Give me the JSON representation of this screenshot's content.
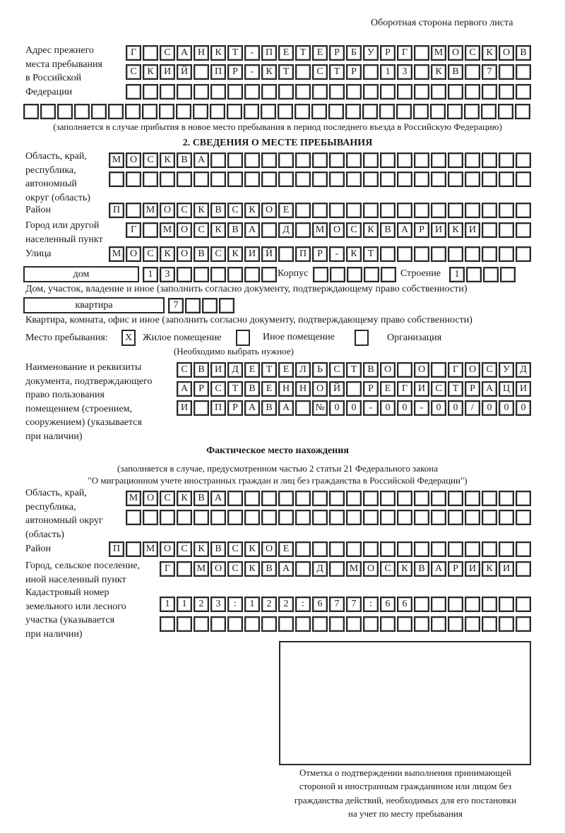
{
  "header": {
    "sheet_side": "Оборотная сторона первого листа"
  },
  "prev_address": {
    "label": [
      "Адрес прежнего",
      "места пребывания",
      "в Российской",
      "Федерации"
    ],
    "rows": [
      [
        "Г",
        "",
        "С",
        "А",
        "Н",
        "К",
        "Т",
        "-",
        "П",
        "Е",
        "Т",
        "Е",
        "Р",
        "Б",
        "У",
        "Р",
        "Г",
        "",
        "М",
        "О",
        "С",
        "К",
        "О",
        "В"
      ],
      [
        "С",
        "К",
        "И",
        "Й",
        "",
        "П",
        "Р",
        "-",
        "К",
        "Т",
        "",
        "С",
        "Т",
        "Р",
        "",
        "1",
        "3",
        "",
        "К",
        "В",
        "",
        "7",
        "",
        ""
      ],
      [],
      []
    ],
    "note": "(заполняется в случае прибытия в новое место пребывания в период последнего въезда в Российскую Федерацию)"
  },
  "stay": {
    "heading": "2. СВЕДЕНИЯ О МЕСТЕ ПРЕБЫВАНИЯ",
    "region_label": [
      "Область, край,",
      "республика,",
      "автономный",
      "округ (область)"
    ],
    "region_rows": [
      [
        "М",
        "О",
        "С",
        "К",
        "В",
        "А"
      ],
      []
    ],
    "district_label": "Район",
    "district": [
      "П",
      "",
      "М",
      "О",
      "С",
      "К",
      "В",
      "С",
      "К",
      "О",
      "Е"
    ],
    "city_label": [
      "Город или другой",
      "населенный пункт"
    ],
    "city": [
      "Г",
      "",
      "М",
      "О",
      "С",
      "К",
      "В",
      "А",
      "",
      "Д",
      "",
      "М",
      "О",
      "С",
      "К",
      "В",
      "А",
      "Р",
      "И",
      "К",
      "И"
    ],
    "street_label": "Улица",
    "street": [
      "М",
      "О",
      "С",
      "К",
      "О",
      "В",
      "С",
      "К",
      "И",
      "Й",
      "",
      "П",
      "Р",
      "-",
      "К",
      "Т"
    ],
    "house_type": "дом",
    "house": [
      "1",
      "3"
    ],
    "building_label": "Корпус",
    "building": [],
    "structure_label": "Строение",
    "structure": [
      "1"
    ],
    "house_note": "Дом, участок, владение и иное (заполнить согласно документу, подтверждающему право собственности)",
    "apartment_type": "квартира",
    "apartment": [
      "7"
    ],
    "apartment_note": "Квартира, комната, офис и иное (заполнить согласно документу, подтверждающему право собственности)",
    "place_label": "Место пребывания:",
    "place_options": [
      {
        "label": "Жилое помещение",
        "mark": "X"
      },
      {
        "label": "Иное помещение",
        "mark": ""
      },
      {
        "label": "Организация",
        "mark": ""
      }
    ],
    "place_hint": "(Необходимо выбрать нужное)",
    "doc_label": [
      "Наименование и реквизиты",
      "документа, подтверждающего",
      "право пользования",
      "помещением (строением,",
      "сооружением) (указывается",
      "при наличии)"
    ],
    "doc_rows": [
      [
        "С",
        "В",
        "И",
        "Д",
        "Е",
        "Т",
        "Е",
        "Л",
        "Ь",
        "С",
        "Т",
        "В",
        "О",
        "",
        "О",
        "",
        "Г",
        "О",
        "С",
        "У",
        "Д"
      ],
      [
        "А",
        "Р",
        "С",
        "Т",
        "В",
        "Е",
        "Н",
        "Н",
        "О",
        "Й",
        "",
        "Р",
        "Е",
        "Г",
        "И",
        "С",
        "Т",
        "Р",
        "А",
        "Ц",
        "И"
      ],
      [
        "И",
        "",
        "П",
        "Р",
        "А",
        "В",
        "А",
        "",
        "№",
        "0",
        "0",
        "-",
        "0",
        "0",
        "-",
        "0",
        "0",
        "/",
        "0",
        "0",
        "0"
      ]
    ]
  },
  "actual": {
    "heading": "Фактическое место нахождения",
    "subtext": [
      "(заполняется в случае, предусмотренном частью 2 статьи 21 Федерального закона",
      "\"О миграционном учете иностранных граждан и лиц без гражданства в Российской Федерации\")"
    ],
    "region_label": [
      "Область, край,",
      "республика,",
      "автономный округ",
      "(область)"
    ],
    "region_rows": [
      [
        "М",
        "О",
        "С",
        "К",
        "В",
        "А"
      ],
      []
    ],
    "district_label": "Район",
    "district": [
      "П",
      "",
      "М",
      "О",
      "С",
      "К",
      "В",
      "С",
      "К",
      "О",
      "Е"
    ],
    "city_label": [
      "Город, сельское поселение,",
      "иной населенный пункт"
    ],
    "city": [
      "Г",
      "",
      "М",
      "О",
      "С",
      "К",
      "В",
      "А",
      "",
      "Д",
      "",
      "М",
      "О",
      "С",
      "К",
      "В",
      "А",
      "Р",
      "И",
      "К",
      "И"
    ],
    "cadastral_label": [
      "Кадастровый номер",
      "земельного или лесного",
      "участка (указывается",
      "при наличии)"
    ],
    "cadastral_rows": [
      [
        "1",
        "1",
        "2",
        "3",
        ":",
        "1",
        "2",
        "2",
        ":",
        "6",
        "7",
        "7",
        ":",
        "6",
        "6"
      ],
      []
    ]
  },
  "confirmation": {
    "caption": [
      "Отметка о подтверждении выполнения принимающей",
      "стороной и иностранным гражданином или лицом без",
      "гражданства действий, необходимых для его постановки",
      "на учет по месту пребывания"
    ]
  }
}
